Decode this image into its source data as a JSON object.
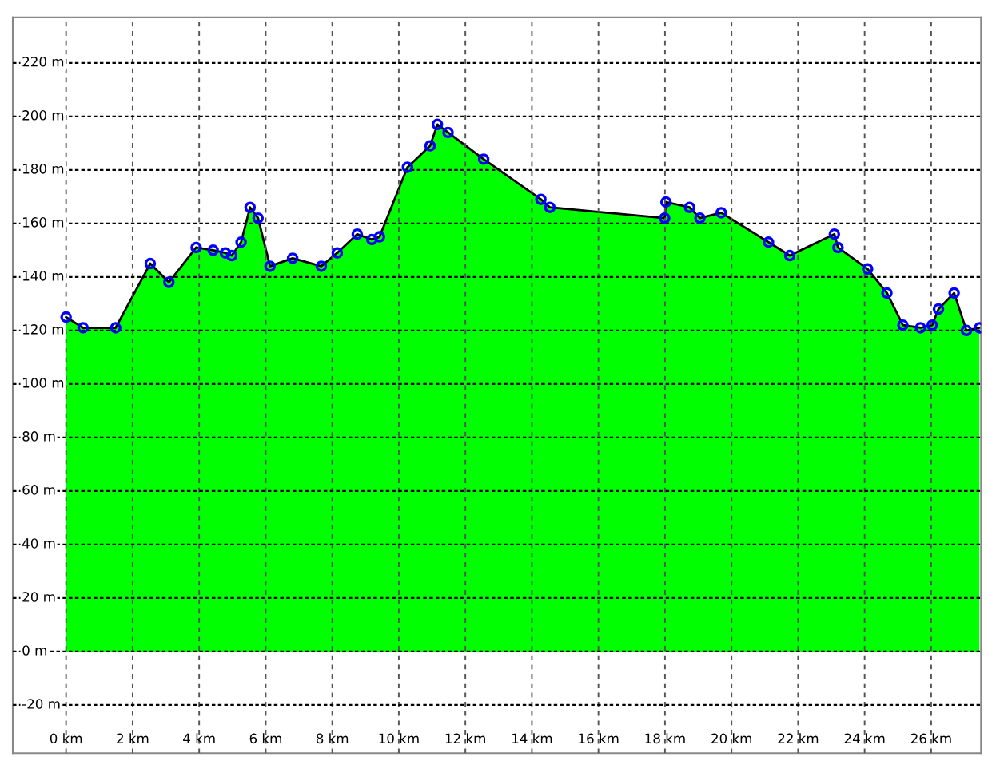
{
  "chart_data": {
    "type": "area",
    "grid": true,
    "marker": "circle",
    "line_style": "solid",
    "xlim": [
      -1.6,
      27.5
    ],
    "ylim": [
      -38,
      237
    ],
    "xticks": [
      {
        "value": 0,
        "label": "0 km"
      },
      {
        "value": 2,
        "label": "2 km"
      },
      {
        "value": 4,
        "label": "4 km"
      },
      {
        "value": 6,
        "label": "6 km"
      },
      {
        "value": 8,
        "label": "8 km"
      },
      {
        "value": 10,
        "label": "10 km"
      },
      {
        "value": 12,
        "label": "12 km"
      },
      {
        "value": 14,
        "label": "14 km"
      },
      {
        "value": 16,
        "label": "16 km"
      },
      {
        "value": 18,
        "label": "18 km"
      },
      {
        "value": 20,
        "label": "20 km"
      },
      {
        "value": 22,
        "label": "22 km"
      },
      {
        "value": 24,
        "label": "24 km"
      },
      {
        "value": 26,
        "label": "26 km"
      }
    ],
    "yticks": [
      {
        "value": -20,
        "label": "-20 m"
      },
      {
        "value": 0,
        "label": "0 m"
      },
      {
        "value": 20,
        "label": "20 m"
      },
      {
        "value": 40,
        "label": "40 m"
      },
      {
        "value": 60,
        "label": "60 m"
      },
      {
        "value": 80,
        "label": "80 m"
      },
      {
        "value": 100,
        "label": "100 m"
      },
      {
        "value": 120,
        "label": "120 m"
      },
      {
        "value": 140,
        "label": "140 m"
      },
      {
        "value": 160,
        "label": "160 m"
      },
      {
        "value": 180,
        "label": "180 m"
      },
      {
        "value": 200,
        "label": "200 m"
      },
      {
        "value": 220,
        "label": "220 m"
      }
    ],
    "series": [
      {
        "color": "#00ff00",
        "x": [
          0,
          0.51,
          1.49,
          2.53,
          3.09,
          3.91,
          4.42,
          4.79,
          4.98,
          5.26,
          5.53,
          5.77,
          6.13,
          6.81,
          7.67,
          8.15,
          8.75,
          9.19,
          9.42,
          10.26,
          10.94,
          11.16,
          11.48,
          12.55,
          14.27,
          14.54,
          17.99,
          18.03,
          18.74,
          19.05,
          19.69,
          21.11,
          21.75,
          23.09,
          23.2,
          24.09,
          24.67,
          25.15,
          25.68,
          26.03,
          26.22,
          26.69,
          27.06,
          27.45
        ],
        "values": [
          125,
          121,
          121,
          145,
          138,
          151,
          150,
          149,
          148,
          153,
          166,
          162,
          144,
          147,
          144,
          149,
          156,
          154,
          155,
          181,
          189,
          197,
          194,
          184,
          169,
          166,
          162,
          168,
          166,
          162,
          164,
          153,
          148,
          156,
          151,
          143,
          134,
          122,
          121,
          122,
          128,
          134,
          120,
          121
        ]
      }
    ]
  }
}
